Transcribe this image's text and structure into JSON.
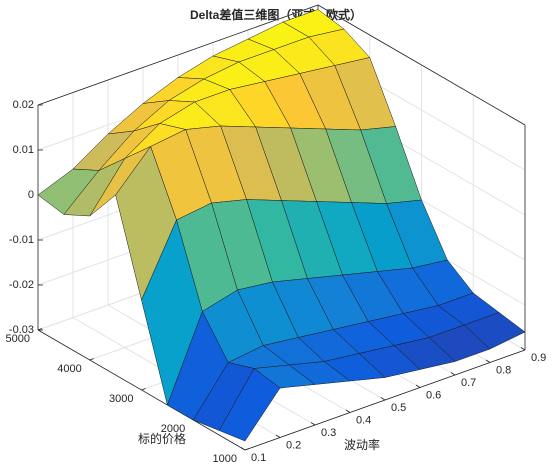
{
  "chart_data": {
    "type": "surface",
    "title": "Delta差值三维图（亚式 - 欧式）",
    "xlabel": "波动率",
    "ylabel": "标的价格",
    "x": [
      0.1,
      0.2,
      0.3,
      0.4,
      0.5,
      0.6,
      0.7,
      0.8,
      0.9
    ],
    "y": [
      1000,
      1500,
      2000,
      2500,
      3000,
      3500,
      4000,
      4500,
      5000
    ],
    "z": [
      [
        -0.028,
        -0.019,
        -0.021,
        -0.023,
        -0.025,
        -0.026,
        -0.027,
        -0.027,
        -0.026
      ],
      [
        -0.029,
        -0.018,
        -0.02,
        -0.022,
        -0.023,
        -0.024,
        -0.025,
        -0.025,
        -0.025
      ],
      [
        -0.03,
        -0.02,
        -0.019,
        -0.02,
        -0.021,
        -0.022,
        -0.023,
        -0.024,
        -0.024
      ],
      [
        -0.03,
        -0.012,
        -0.01,
        -0.011,
        -0.013,
        -0.015,
        -0.017,
        -0.019,
        -0.02
      ],
      [
        -0.01,
        0.005,
        0.006,
        0.004,
        0.001,
        -0.002,
        -0.005,
        -0.008,
        -0.01
      ],
      [
        0.01,
        0.018,
        0.019,
        0.017,
        0.014,
        0.011,
        0.008,
        0.005,
        0.003
      ],
      [
        0.002,
        0.012,
        0.017,
        0.019,
        0.019,
        0.018,
        0.017,
        0.016,
        0.015
      ],
      [
        -0.001,
        0.006,
        0.012,
        0.016,
        0.018,
        0.019,
        0.019,
        0.019,
        0.018
      ],
      [
        0.0,
        0.003,
        0.008,
        0.012,
        0.015,
        0.017,
        0.018,
        0.019,
        0.019
      ]
    ],
    "xlim": [
      0.1,
      0.9
    ],
    "ylim": [
      1000,
      5000
    ],
    "zlim": [
      -0.03,
      0.02
    ],
    "xticks": [
      0.1,
      0.2,
      0.3,
      0.4,
      0.5,
      0.6,
      0.7,
      0.8,
      0.9
    ],
    "yticks": [
      1000,
      2000,
      3000,
      4000,
      5000
    ],
    "zticks": [
      -0.03,
      -0.02,
      -0.01,
      0,
      0.01,
      0.02
    ],
    "grid": true,
    "colormap": [
      "#352a87",
      "#0f5cdd",
      "#1481d6",
      "#06a4ca",
      "#2eb7a4",
      "#87bf77",
      "#d1bb59",
      "#fec832",
      "#f9fb0e"
    ]
  }
}
